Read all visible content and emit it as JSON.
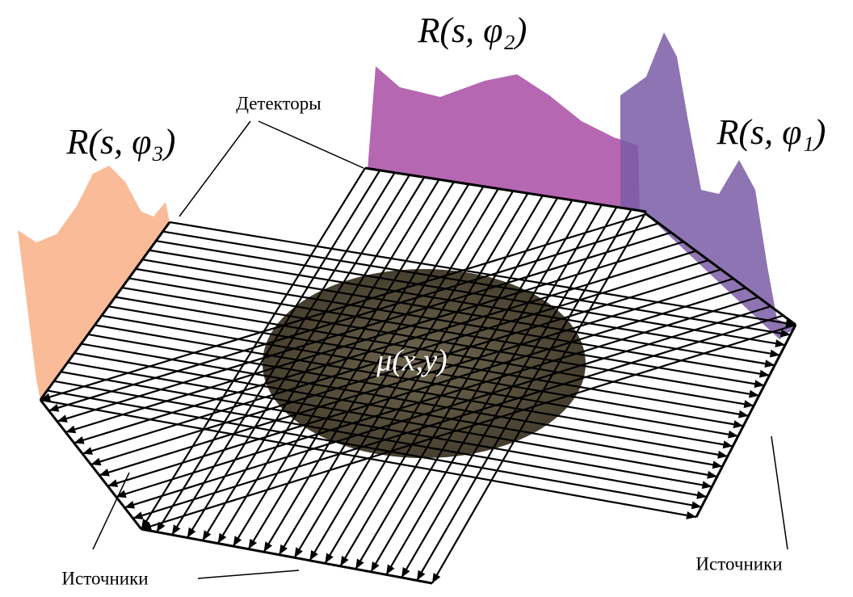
{
  "projections": [
    {
      "label": "R(s, φ₂)"
    },
    {
      "label": "R(s, φ₃)"
    },
    {
      "label": "R(s, φ₁)"
    }
  ],
  "detectors_label": "Детекторы",
  "object_label": "μ(x,y)",
  "sources_labels": [
    "Источники",
    "Источники"
  ]
}
